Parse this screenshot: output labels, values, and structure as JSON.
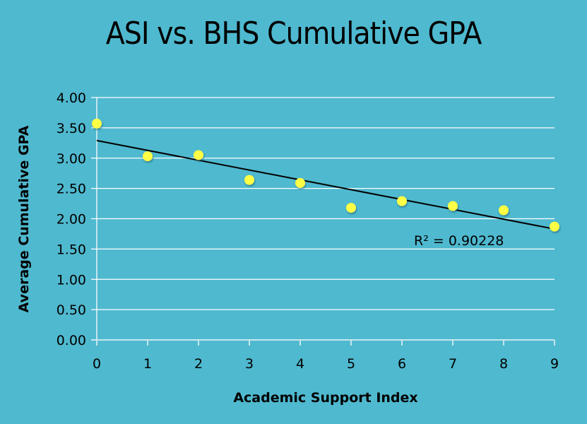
{
  "chart_data": {
    "type": "scatter",
    "title": "ASI vs. BHS Cumulative GPA",
    "xlabel": "Academic Support Index",
    "ylabel": "Average Cumulative GPA",
    "xlim": [
      0,
      9
    ],
    "ylim": [
      0,
      4
    ],
    "x_ticks": [
      "0",
      "1",
      "2",
      "3",
      "4",
      "5",
      "6",
      "7",
      "8",
      "9"
    ],
    "y_ticks": [
      "0.00",
      "0.50",
      "1.00",
      "1.50",
      "2.00",
      "2.50",
      "3.00",
      "3.50",
      "4.00"
    ],
    "grid": "horizontal",
    "legend": "none",
    "series": [
      {
        "name": "Average Cumulative GPA",
        "x": [
          0,
          1,
          2,
          3,
          4,
          5,
          6,
          7,
          8,
          9
        ],
        "y": [
          3.57,
          3.03,
          3.05,
          2.64,
          2.59,
          2.18,
          2.29,
          2.21,
          2.14,
          1.87
        ],
        "color": "#ffff44"
      }
    ],
    "trendline": {
      "type": "linear",
      "start": [
        0,
        3.29
      ],
      "end": [
        9,
        1.83
      ],
      "color": "#000000",
      "r_squared_label": "R² = 0.90228"
    },
    "colors": {
      "background": "#4fb9cf",
      "grid": "#ffffff",
      "point": "#ffff44"
    }
  }
}
